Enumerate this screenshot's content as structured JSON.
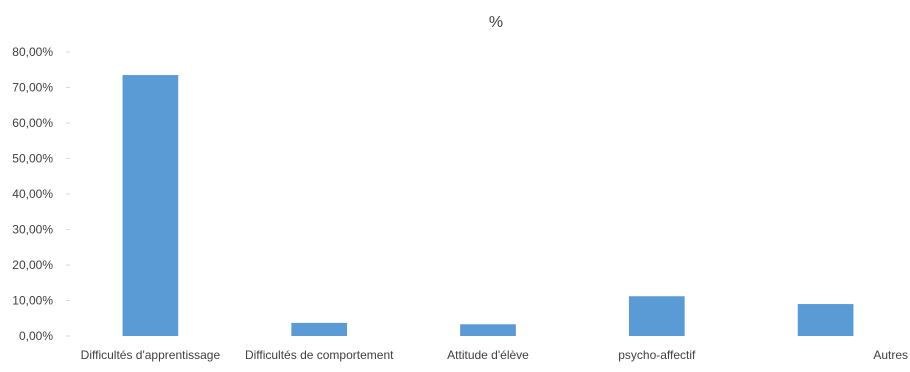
{
  "chart_data": {
    "type": "bar",
    "title": "%",
    "xlabel": "",
    "ylabel": "",
    "categories": [
      "Difficultés d'apprentissage",
      "Difficultés de comportement",
      "Attitude d'élève",
      "psycho-affectif",
      "Autres"
    ],
    "series": [
      {
        "values": [
          0.735,
          0.037,
          0.033,
          0.112,
          0.09
        ]
      }
    ],
    "ylim": [
      0,
      0.8
    ],
    "yticks": [
      0,
      0.1,
      0.2,
      0.3,
      0.4,
      0.5,
      0.6,
      0.7,
      0.8
    ],
    "ytick_labels": [
      "0,00%",
      "10,00%",
      "20,00%",
      "30,00%",
      "40,00%",
      "50,00%",
      "60,00%",
      "70,00%",
      "80,00%"
    ],
    "grid": false,
    "legend": "none",
    "bar_color": "#5b9bd5",
    "text_color": "#404040"
  }
}
